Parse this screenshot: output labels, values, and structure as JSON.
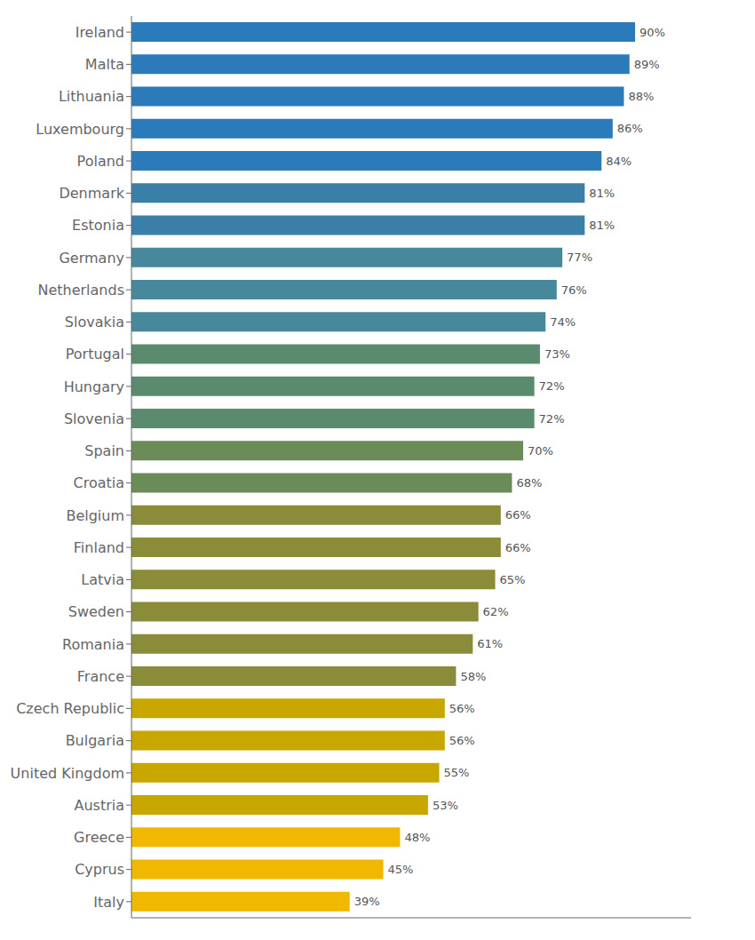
{
  "chart_data": {
    "type": "bar",
    "orientation": "horizontal",
    "categories": [
      "Ireland",
      "Malta",
      "Lithuania",
      "Luxembourg",
      "Poland",
      "Denmark",
      "Estonia",
      "Germany",
      "Netherlands",
      "Slovakia",
      "Portugal",
      "Hungary",
      "Slovenia",
      "Spain",
      "Croatia",
      "Belgium",
      "Finland",
      "Latvia",
      "Sweden",
      "Romania",
      "France",
      "Czech Republic",
      "Bulgaria",
      "United Kingdom",
      "Austria",
      "Greece",
      "Cyprus",
      "Italy"
    ],
    "values": [
      90,
      89,
      88,
      86,
      84,
      81,
      81,
      77,
      76,
      74,
      73,
      72,
      72,
      70,
      68,
      66,
      66,
      65,
      62,
      61,
      58,
      56,
      56,
      55,
      53,
      48,
      45,
      39
    ],
    "value_labels": [
      "90%",
      "89%",
      "88%",
      "86%",
      "84%",
      "81%",
      "81%",
      "77%",
      "76%",
      "74%",
      "73%",
      "72%",
      "72%",
      "70%",
      "68%",
      "66%",
      "66%",
      "65%",
      "62%",
      "61%",
      "58%",
      "56%",
      "56%",
      "55%",
      "53%",
      "48%",
      "45%",
      "39%"
    ],
    "colors": [
      "#2b7bba",
      "#2b7bba",
      "#2b7bba",
      "#2b7bba",
      "#2b7bba",
      "#3a7fa8",
      "#3a7fa8",
      "#47889a",
      "#47889a",
      "#47889a",
      "#5a8b6e",
      "#5a8b6e",
      "#5a8b6e",
      "#6b8b58",
      "#6b8b58",
      "#8b8c3a",
      "#8b8c3a",
      "#8b8c3a",
      "#8b8c3a",
      "#8b8c3a",
      "#8b8c3a",
      "#c8a800",
      "#c8a800",
      "#c8a800",
      "#c8a800",
      "#f0b800",
      "#f0b800",
      "#f0b800"
    ],
    "xlim": [
      0,
      100
    ],
    "grid": false,
    "data_labels": true,
    "tick_labels": "y"
  }
}
